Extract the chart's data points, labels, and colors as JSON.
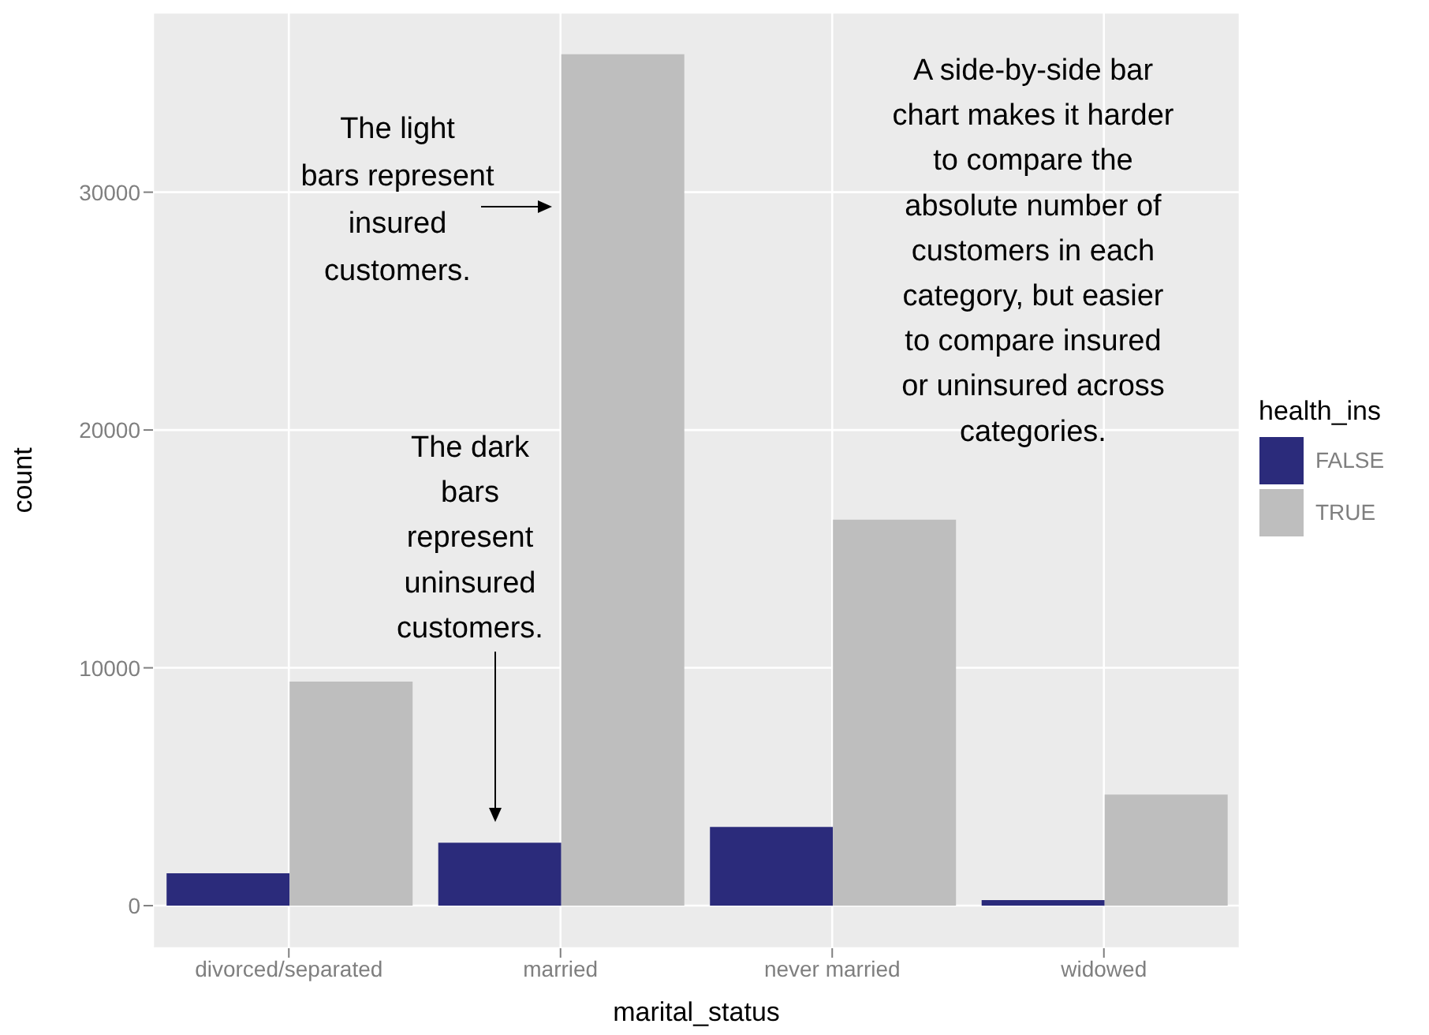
{
  "chart_data": {
    "type": "bar",
    "xlabel": "marital_status",
    "ylabel": "count",
    "legend_title": "health_ins",
    "categories": [
      "divorced/separated",
      "married",
      "never married",
      "widowed"
    ],
    "series": [
      {
        "name": "FALSE",
        "color": "#2b2b7b",
        "values": [
          1360,
          2650,
          3310,
          230
        ]
      },
      {
        "name": "TRUE",
        "color": "#bebebe",
        "values": [
          9420,
          35800,
          16230,
          4670
        ]
      }
    ],
    "ylim": [
      -1790,
      37550
    ],
    "yticks": [
      0,
      10000,
      20000,
      30000
    ],
    "grid": true,
    "legend": "right",
    "annotations": [
      "The light\nbars represent\ninsured\ncustomers.",
      "The dark\nbars\nrepresent\nuninsured\ncustomers.",
      "A side-by-side bar\nchart makes it harder\nto compare the\nabsolute number of\ncustomers in each\ncategory, but easier\nto compare insured\nor uninsured across\ncategories."
    ]
  }
}
